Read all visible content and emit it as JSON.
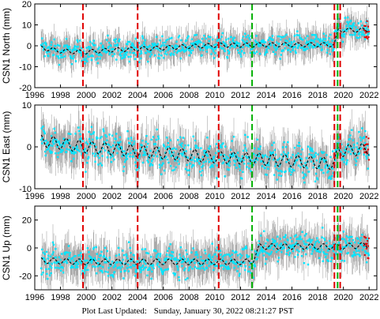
{
  "chart_data": [
    {
      "type": "scatter",
      "ylabel": "CSN1 North (mm)",
      "ylim": [
        -20,
        20
      ],
      "yticks": [
        -20,
        -10,
        0,
        10,
        20
      ],
      "xlim": [
        1996,
        2022.6
      ],
      "xticks": [
        "1996",
        "1998",
        "2000",
        "2002",
        "2004",
        "2006",
        "2008",
        "2010",
        "2012",
        "2014",
        "2016",
        "2018",
        "2020",
        "2022"
      ],
      "series": [
        {
          "role": "observations",
          "color": "#00e5ff",
          "error_bar_color": "#a9a9a9",
          "x_start": 1996.5,
          "x_end": 2022.0
        },
        {
          "role": "late observations",
          "color": "#e00000",
          "x_start": 2021.6,
          "x_end": 2022.0
        },
        {
          "role": "model",
          "color": "#000000",
          "style": "dashed",
          "x": [
            1996.5,
            1998.0,
            1999.8,
            2002.0,
            2004.0,
            2006.0,
            2008.0,
            2010.3,
            2012.0,
            2014.0,
            2016.0,
            2018.0,
            2019.3,
            2019.6,
            2020.5,
            2022.0
          ],
          "y": [
            -1.0,
            -2.5,
            -3.0,
            -2.0,
            -1.5,
            -1.0,
            -0.3,
            0.3,
            0.3,
            0.5,
            0.5,
            0.5,
            0.5,
            7.5,
            7.5,
            7.5
          ],
          "seasonal_amplitude": 1.0,
          "scatter": 2.5
        }
      ],
      "vlines": [
        {
          "x": 1999.75,
          "color": "#e00000"
        },
        {
          "x": 2004.0,
          "color": "#e00000"
        },
        {
          "x": 2010.3,
          "color": "#e00000"
        },
        {
          "x": 2012.9,
          "color": "#00b000"
        },
        {
          "x": 2019.3,
          "color": "#e00000"
        },
        {
          "x": 2019.55,
          "color": "#00b000"
        },
        {
          "x": 2019.75,
          "color": "#e00000"
        }
      ],
      "grid": false
    },
    {
      "type": "scatter",
      "ylabel": "CSN1 East (mm)",
      "ylim": [
        -10,
        10
      ],
      "yticks": [
        -10,
        0,
        10
      ],
      "xlim": [
        1996,
        2022.6
      ],
      "xticks": [
        "1996",
        "1998",
        "2000",
        "2002",
        "2004",
        "2006",
        "2008",
        "2010",
        "2012",
        "2014",
        "2016",
        "2018",
        "2020",
        "2022"
      ],
      "series": [
        {
          "role": "observations",
          "color": "#00e5ff",
          "error_bar_color": "#a9a9a9",
          "x_start": 1996.5,
          "x_end": 2022.0
        },
        {
          "role": "late observations",
          "color": "#e00000",
          "x_start": 2021.6,
          "x_end": 2022.0
        },
        {
          "role": "model",
          "color": "#000000",
          "style": "dashed",
          "x": [
            1996.5,
            1999.8,
            2004.0,
            2010.3,
            2014.0,
            2018.0,
            2019.3,
            2019.6,
            2022.0
          ],
          "y": [
            1.5,
            0.0,
            -1.0,
            -2.5,
            -3.0,
            -3.8,
            -4.0,
            -1.0,
            -0.5
          ],
          "seasonal_amplitude": 1.4,
          "scatter": 1.8
        }
      ],
      "vlines": [
        {
          "x": 1999.75,
          "color": "#e00000"
        },
        {
          "x": 2004.0,
          "color": "#e00000"
        },
        {
          "x": 2010.3,
          "color": "#e00000"
        },
        {
          "x": 2012.9,
          "color": "#00b000"
        },
        {
          "x": 2019.3,
          "color": "#e00000"
        },
        {
          "x": 2019.55,
          "color": "#00b000"
        },
        {
          "x": 2019.75,
          "color": "#e00000"
        }
      ],
      "grid": false
    },
    {
      "type": "scatter",
      "ylabel": "CSN1 Up (mm)",
      "ylim": [
        -30,
        30
      ],
      "yticks": [
        -20,
        0,
        20
      ],
      "xlim": [
        1996,
        2022.6
      ],
      "xticks": [
        "1996",
        "1998",
        "2000",
        "2002",
        "2004",
        "2006",
        "2008",
        "2010",
        "2012",
        "2014",
        "2016",
        "2018",
        "2020",
        "2022"
      ],
      "series": [
        {
          "role": "observations",
          "color": "#00e5ff",
          "error_bar_color": "#a9a9a9",
          "x_start": 1996.5,
          "x_end": 2022.0
        },
        {
          "role": "late observations",
          "color": "#e00000",
          "x_start": 2021.6,
          "x_end": 2022.0
        },
        {
          "role": "model",
          "color": "#000000",
          "style": "dashed",
          "x": [
            1996.5,
            1999.8,
            2004.0,
            2010.3,
            2012.9,
            2013.5,
            2016.0,
            2019.3,
            2019.6,
            2022.0
          ],
          "y": [
            -9.0,
            -10.0,
            -10.0,
            -10.0,
            -10.0,
            1.0,
            1.0,
            1.0,
            1.0,
            2.0
          ],
          "seasonal_amplitude": 2.0,
          "scatter": 5.0
        }
      ],
      "vlines": [
        {
          "x": 1999.75,
          "color": "#e00000"
        },
        {
          "x": 2004.0,
          "color": "#e00000"
        },
        {
          "x": 2010.3,
          "color": "#e00000"
        },
        {
          "x": 2012.9,
          "color": "#00b000"
        },
        {
          "x": 2019.3,
          "color": "#e00000"
        },
        {
          "x": 2019.55,
          "color": "#00b000"
        },
        {
          "x": 2019.75,
          "color": "#e00000"
        }
      ],
      "grid": false
    }
  ],
  "footer": {
    "label": "Plot Last Updated:",
    "value": "Sunday, January 30, 2022 08:21:27 PST"
  }
}
